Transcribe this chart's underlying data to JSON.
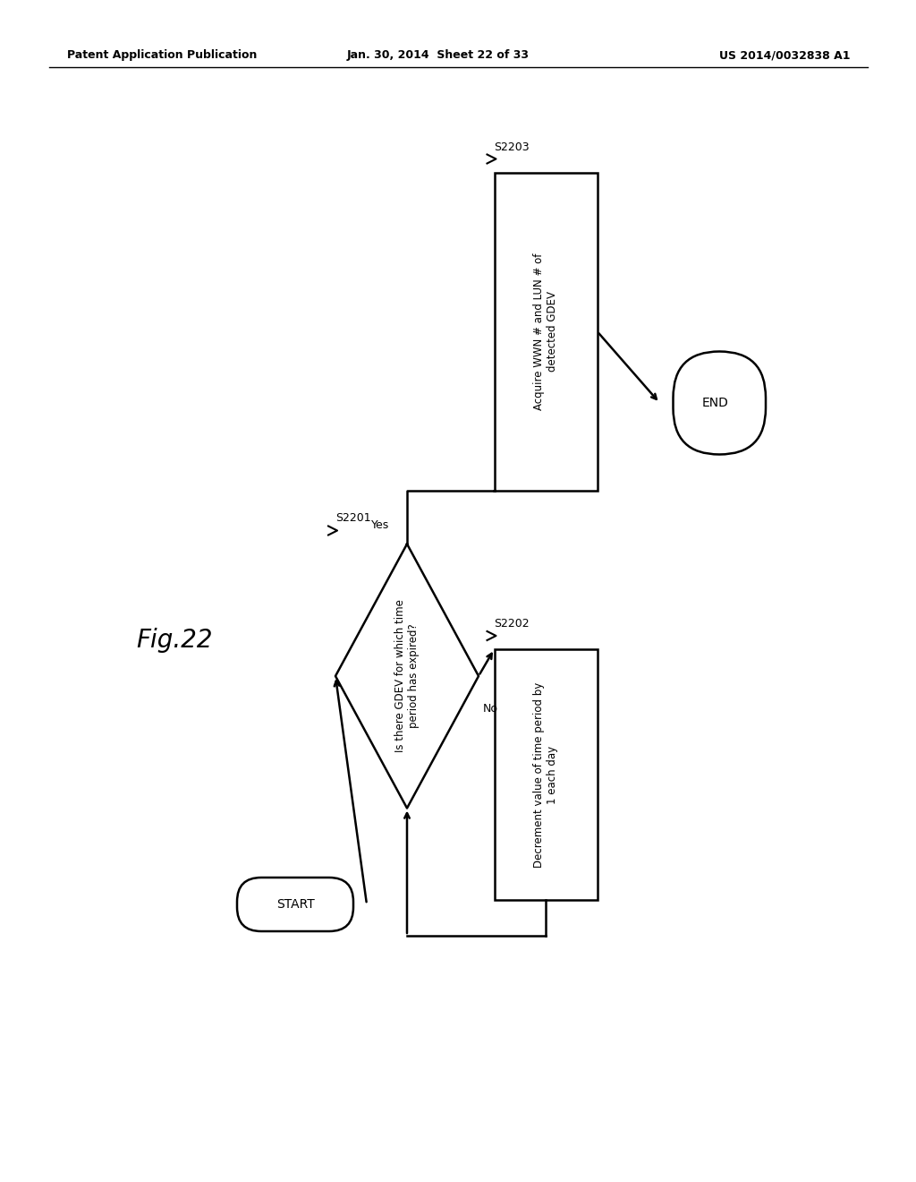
{
  "header_left": "Patent Application Publication",
  "header_center": "Jan. 30, 2014  Sheet 22 of 33",
  "header_right": "US 2014/0032838 A1",
  "fig_label": "Fig.22",
  "background_color": "#ffffff",
  "start_label": "START",
  "end_label": "END",
  "diamond_label": "Is there GDEV for which time\nperiod has expired?",
  "s2202_label": "Decrement value of time period by\n1 each day",
  "s2203_label": "Acquire WWN # and LUN # of\ndetected GDEV",
  "yes_label": "Yes",
  "no_label": "No",
  "step_s2201": "S2201",
  "step_s2202": "S2202",
  "step_s2203": "S2203"
}
